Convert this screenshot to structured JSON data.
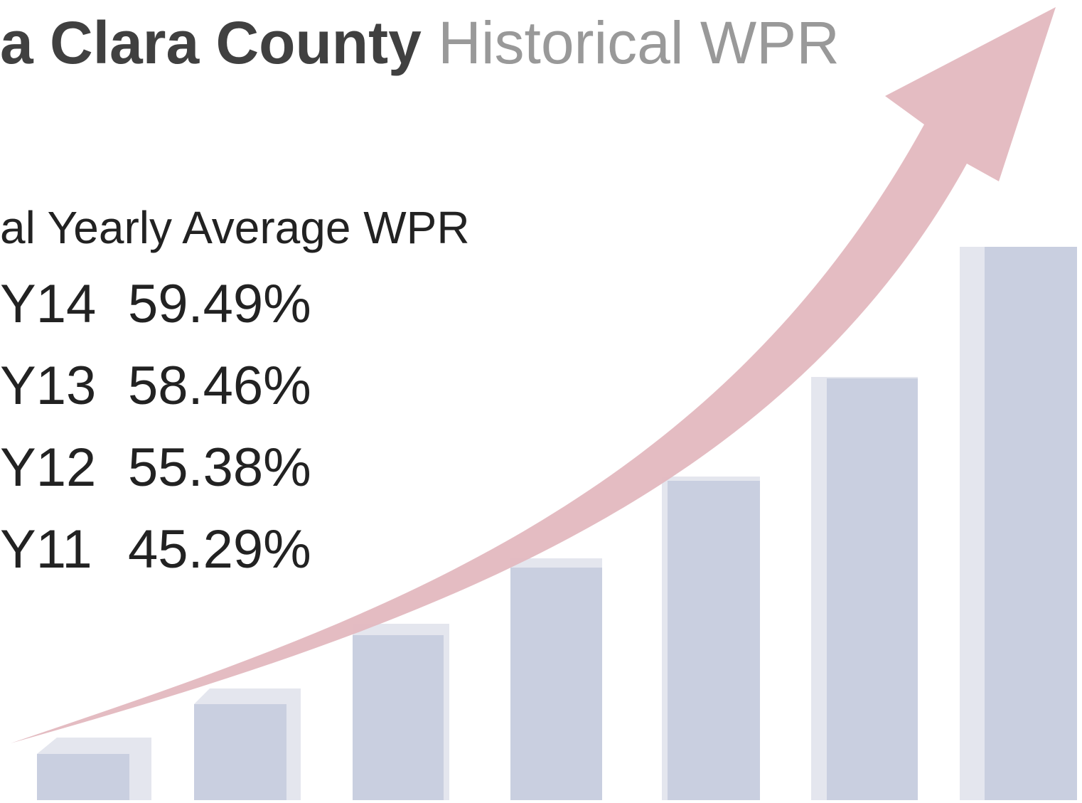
{
  "header": {
    "title_bold": "a Clara County",
    "title_rest": "Historical WPR"
  },
  "subtitle": "al Yearly Average WPR",
  "rows": [
    [
      "Y14",
      "59.49%"
    ],
    [
      "Y13",
      "58.46%"
    ],
    [
      "Y12",
      "55.38%"
    ],
    [
      "Y11",
      "45.29%"
    ]
  ]
}
